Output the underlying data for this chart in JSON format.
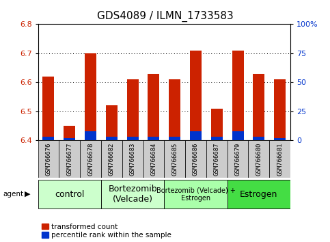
{
  "title": "GDS4089 / ILMN_1733583",
  "samples": [
    "GSM766676",
    "GSM766677",
    "GSM766678",
    "GSM766682",
    "GSM766683",
    "GSM766684",
    "GSM766685",
    "GSM766686",
    "GSM766687",
    "GSM766679",
    "GSM766680",
    "GSM766681"
  ],
  "red_values": [
    6.62,
    6.45,
    6.7,
    6.52,
    6.61,
    6.63,
    6.61,
    6.71,
    6.51,
    6.71,
    6.63,
    6.61
  ],
  "blue_percentiles": [
    3,
    2,
    8,
    3,
    3,
    3,
    3,
    8,
    3,
    8,
    3,
    2
  ],
  "y_min": 6.4,
  "y_max": 6.8,
  "y_ticks_left": [
    6.4,
    6.5,
    6.6,
    6.7,
    6.8
  ],
  "y_ticks_right": [
    0,
    25,
    50,
    75,
    100
  ],
  "bar_bottom": 6.4,
  "red_color": "#cc2200",
  "blue_color": "#0033cc",
  "group_labels": [
    "control",
    "Bortezomib\n(Velcade)",
    "Bortezomib (Velcade) +\nEstrogen",
    "Estrogen"
  ],
  "group_starts": [
    0,
    3,
    6,
    9
  ],
  "group_ends": [
    2,
    5,
    8,
    11
  ],
  "group_colors": [
    "#ccffcc",
    "#ccffcc",
    "#aaffaa",
    "#44dd44"
  ],
  "group_fontsizes": [
    9,
    9,
    7,
    9
  ],
  "agent_label": "agent",
  "legend_red": "transformed count",
  "legend_blue": "percentile rank within the sample",
  "tick_color_left": "#cc2200",
  "tick_color_right": "#0033cc",
  "sample_cell_color": "#cccccc",
  "plot_bg": "#ffffff"
}
